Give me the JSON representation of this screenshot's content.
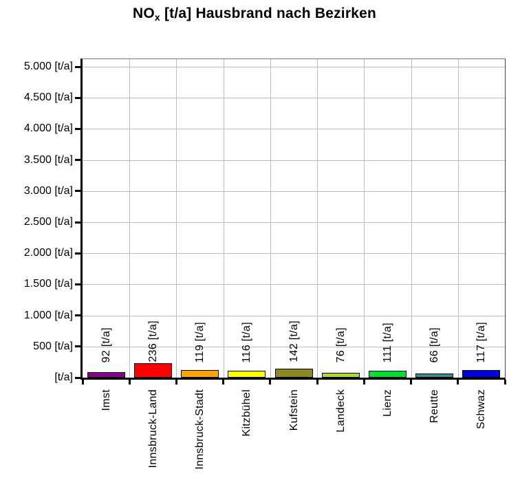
{
  "chart_data": {
    "type": "bar",
    "title": {
      "prefix": "NO",
      "subscript": "x",
      "suffix": " [t/a] Hausbrand nach Bezirken"
    },
    "categories": [
      "Imst",
      "Innsbruck-Land",
      "Innsbruck-Stadt",
      "Kitzbühel",
      "Kufstein",
      "Landeck",
      "Lienz",
      "Reutte",
      "Schwaz"
    ],
    "values": [
      92,
      236,
      119,
      116,
      142,
      76,
      111,
      66,
      117
    ],
    "value_labels": [
      "92 [t/a]",
      "236 [t/a]",
      "119 [t/a]",
      "116 [t/a]",
      "142 [t/a]",
      "76 [t/a]",
      "111 [t/a]",
      "66 [t/a]",
      "117 [t/a]"
    ],
    "bar_colors": [
      "#8B008B",
      "#FF0000",
      "#FFA500",
      "#FFFF00",
      "#8A8A1E",
      "#AADD33",
      "#00DC32",
      "#379090",
      "#0000DD"
    ],
    "y_ticks": [
      {
        "value": 5000,
        "label": "5.000 [t/a]"
      },
      {
        "value": 4500,
        "label": "4.500 [t/a]"
      },
      {
        "value": 4000,
        "label": "4.000 [t/a]"
      },
      {
        "value": 3500,
        "label": "3.500 [t/a]"
      },
      {
        "value": 3000,
        "label": "3.000 [t/a]"
      },
      {
        "value": 2500,
        "label": "2.500 [t/a]"
      },
      {
        "value": 2000,
        "label": "2.000 [t/a]"
      },
      {
        "value": 1500,
        "label": "1.500 [t/a]"
      },
      {
        "value": 1000,
        "label": "1.000 [t/a]"
      },
      {
        "value": 500,
        "label": "500 [t/a]"
      },
      {
        "value": 0,
        "label": "[t/a]"
      }
    ],
    "ylim": [
      0,
      5000
    ],
    "xlabel": "",
    "ylabel": "",
    "grid": true,
    "legend": "none"
  }
}
